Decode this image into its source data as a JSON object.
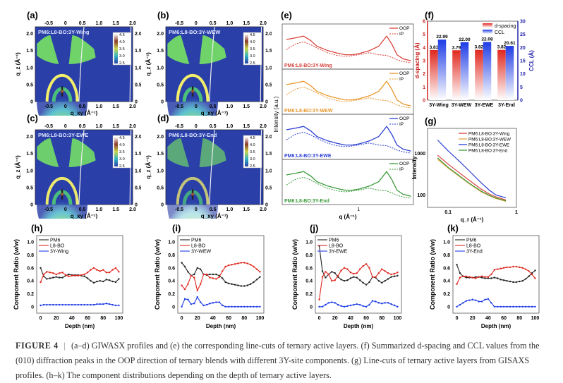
{
  "figure": {
    "caption_label": "FIGURE 4",
    "caption_separator": "|",
    "caption_text": "(a–d) GIWASX profiles and (e) the corresponding line-cuts of ternary active layers. (f) Summarized d-spacing and CCL values from the (010) diffraction peaks in the OOP direction of ternary blends with different 3Y-site components. (g) Line-cuts of ternary active layers from GISAXS profiles. (h–k) The component distributions depending on the depth of ternary active layers."
  },
  "giwaxs": {
    "xlabel": "q_xy (Å⁻¹)",
    "ylabel": "q_z (Å⁻¹)",
    "xticks": [
      "-0.5",
      "0",
      "0.5",
      "1.0",
      "1.5",
      "2.0"
    ],
    "yticks": [
      "0",
      "0.5",
      "1.0",
      "1.5",
      "2.0"
    ],
    "colorbar_ticks": [
      "4.5",
      "4.0",
      "3.5",
      "3.0",
      "2.5"
    ],
    "panels": [
      {
        "label": "(a)",
        "sample": "PM6:L8-BO:3Y-Wing",
        "intensity": 1.0
      },
      {
        "label": "(b)",
        "sample": "PM6:L8-BO:3Y-WEW",
        "intensity": 1.0
      },
      {
        "label": "(c)",
        "sample": "PM6:L8-BO:3Y-EWE",
        "intensity": 0.95
      },
      {
        "label": "(d)",
        "sample": "PM6:L8-BO:3Y-End",
        "intensity": 0.6
      }
    ]
  },
  "chart_data": [
    {
      "id": "e",
      "type": "line",
      "label": "(e)",
      "xlabel": "q (Å⁻¹)",
      "ylabel": "Intensity (a.u.)",
      "xscale": "log",
      "xtick": "1",
      "legend": [
        "OOP",
        "IP"
      ],
      "stacks": [
        {
          "sample": "PM6:L8-BO:3Y-Wing",
          "color": "#d9433c"
        },
        {
          "sample": "PM6:L8-BO:3Y-WEW",
          "color": "#e8962a"
        },
        {
          "sample": "PM6:L8-BO:3Y-EWE",
          "color": "#2b3fd1"
        },
        {
          "sample": "PM6:L8-BO:3Y-End",
          "color": "#3a9a3a"
        }
      ],
      "q": [
        0.3,
        0.35,
        0.4,
        0.45,
        0.5,
        0.6,
        0.7,
        0.8,
        0.9,
        1.0,
        1.2,
        1.4,
        1.6,
        1.75,
        1.9,
        2.1,
        2.4
      ],
      "oop_profile": [
        0.75,
        0.8,
        0.85,
        0.72,
        0.55,
        0.42,
        0.35,
        0.3,
        0.3,
        0.33,
        0.42,
        0.55,
        0.85,
        0.6,
        0.3,
        0.18,
        0.12
      ],
      "ip_profile": [
        0.45,
        0.62,
        0.68,
        0.6,
        0.5,
        0.35,
        0.28,
        0.25,
        0.27,
        0.3,
        0.36,
        0.3,
        0.28,
        0.22,
        0.15,
        0.1,
        0.06
      ]
    },
    {
      "id": "f",
      "type": "bar",
      "label": "(f)",
      "categories": [
        "3Y-Wing",
        "3Y-WEW",
        "3Y-EWE",
        "3Y-End"
      ],
      "series": [
        {
          "name": "d-spacing",
          "axis": "left",
          "color": "#e0281e",
          "values": [
            3.81,
            3.79,
            3.82,
            3.82
          ]
        },
        {
          "name": "CCL",
          "axis": "right",
          "color": "#1e3ce6",
          "values": [
            22.99,
            22.0,
            22.08,
            20.61
          ]
        }
      ],
      "data_labels": [
        [
          "3.81",
          "3.79",
          "3.82",
          "3.82"
        ],
        [
          "22.99",
          "22.00",
          "22.08",
          "20.61"
        ]
      ],
      "ylabel": "d-spacing (Å)",
      "y2label": "CCL (Å)",
      "ylim": [
        0,
        6
      ],
      "y2lim": [
        0,
        30
      ],
      "yticks": [
        "0",
        "1",
        "2",
        "3",
        "4",
        "5",
        "6"
      ],
      "y2ticks": [
        "0",
        "5",
        "10",
        "15",
        "20",
        "25",
        "30"
      ]
    },
    {
      "id": "g",
      "type": "line",
      "label": "(g)",
      "xlabel": "q_r (Å⁻¹)",
      "ylabel": "Intensity",
      "xscale": "log",
      "yscale": "log",
      "xlim": [
        0.05,
        1
      ],
      "ylim": [
        50,
        4000
      ],
      "xticks": [
        "0.1",
        "1"
      ],
      "yticks": [
        "100",
        "1000"
      ],
      "x": [
        0.07,
        0.1,
        0.15,
        0.2,
        0.3,
        0.4,
        0.5,
        0.7
      ],
      "series": [
        {
          "name": "PM6:L8-BO:3Y-Wing",
          "color": "#d9433c",
          "values": [
            900,
            550,
            330,
            230,
            140,
            105,
            90,
            75
          ]
        },
        {
          "name": "PM6:L8-BO:3Y-WEW",
          "color": "#e8a53a",
          "values": [
            720,
            440,
            270,
            190,
            120,
            95,
            82,
            70
          ]
        },
        {
          "name": "PM6:L8-BO:3Y-EWE",
          "color": "#2b3fd1",
          "values": [
            2100,
            1150,
            620,
            390,
            200,
            130,
            100,
            85
          ]
        },
        {
          "name": "PM6:L8-BO:3Y-End",
          "color": "#3a9a3a",
          "values": [
            780,
            460,
            280,
            195,
            125,
            98,
            84,
            72
          ]
        }
      ]
    },
    {
      "id": "h",
      "type": "line",
      "label": "(h)",
      "xlabel": "Depth (nm)",
      "ylabel": "Component Ratio (w/w)",
      "xlim": [
        -5,
        105
      ],
      "ylim": [
        -0.1,
        1.1
      ],
      "xticks": [
        "0",
        "20",
        "40",
        "60",
        "80",
        "100"
      ],
      "yticks": [
        "0",
        "0.2",
        "0.4",
        "0.6",
        "0.8",
        "1.0"
      ],
      "x": [
        0,
        4,
        8,
        12,
        16,
        20,
        24,
        28,
        32,
        36,
        40,
        44,
        48,
        52,
        56,
        60,
        64,
        68,
        72,
        76,
        80,
        84,
        88,
        92,
        96,
        100
      ],
      "series": [
        {
          "name": "PM6",
          "color": "#222222",
          "values": [
            0.6,
            0.47,
            0.43,
            0.44,
            0.45,
            0.46,
            0.45,
            0.45,
            0.48,
            0.5,
            0.49,
            0.49,
            0.49,
            0.48,
            0.47,
            0.44,
            0.4,
            0.37,
            0.39,
            0.4,
            0.39,
            0.42,
            0.41,
            0.39,
            0.38,
            0.43
          ]
        },
        {
          "name": "L8-BO",
          "color": "#e0281e",
          "values": [
            0.38,
            0.5,
            0.54,
            0.53,
            0.52,
            0.5,
            0.52,
            0.53,
            0.49,
            0.47,
            0.48,
            0.48,
            0.48,
            0.49,
            0.5,
            0.53,
            0.57,
            0.6,
            0.57,
            0.55,
            0.57,
            0.53,
            0.53,
            0.57,
            0.6,
            0.54
          ]
        },
        {
          "name": "3Y-Wing",
          "color": "#1e3ce6",
          "values": [
            0.02,
            0.03,
            0.03,
            0.03,
            0.03,
            0.03,
            0.03,
            0.03,
            0.03,
            0.03,
            0.03,
            0.03,
            0.03,
            0.03,
            0.03,
            0.03,
            0.03,
            0.03,
            0.04,
            0.04,
            0.04,
            0.05,
            0.04,
            0.03,
            0.02,
            0.02
          ]
        }
      ]
    },
    {
      "id": "i",
      "type": "line",
      "label": "(i)",
      "xlabel": "Depth (nm)",
      "ylabel": "Component Ratio (w/w)",
      "xlim": [
        -5,
        105
      ],
      "ylim": [
        -0.1,
        1.1
      ],
      "xticks": [
        "0",
        "20",
        "40",
        "60",
        "80",
        "100"
      ],
      "yticks": [
        "0",
        "0.2",
        "0.4",
        "0.6",
        "0.8",
        "1.0"
      ],
      "x": [
        0,
        4,
        8,
        12,
        16,
        20,
        24,
        28,
        32,
        36,
        40,
        44,
        48,
        52,
        56,
        60,
        64,
        68,
        72,
        76,
        80,
        84,
        88,
        92,
        96,
        100
      ],
      "series": [
        {
          "name": "PM6",
          "color": "#222222",
          "values": [
            0.68,
            0.62,
            0.54,
            0.48,
            0.5,
            0.6,
            0.58,
            0.5,
            0.49,
            0.5,
            0.5,
            0.5,
            0.48,
            0.44,
            0.38,
            0.36,
            0.35,
            0.34,
            0.33,
            0.32,
            0.32,
            0.33,
            0.35,
            0.38,
            0.42,
            0.46
          ]
        },
        {
          "name": "L8-BO",
          "color": "#e0281e",
          "values": [
            0.33,
            0.27,
            0.35,
            0.48,
            0.45,
            0.25,
            0.35,
            0.5,
            0.5,
            0.45,
            0.44,
            0.43,
            0.46,
            0.55,
            0.62,
            0.64,
            0.65,
            0.66,
            0.67,
            0.68,
            0.68,
            0.67,
            0.65,
            0.62,
            0.58,
            0.54
          ]
        },
        {
          "name": "3Y-WEW",
          "color": "#1e3ce6",
          "values": [
            0.0,
            0.12,
            0.11,
            0.04,
            0.05,
            0.15,
            0.07,
            0.02,
            0.03,
            0.05,
            0.06,
            0.07,
            0.07,
            0.02,
            0.0,
            0.0,
            0.0,
            0.0,
            0.0,
            0.0,
            0.0,
            0.0,
            0.0,
            0.0,
            0.0,
            0.0
          ]
        }
      ]
    },
    {
      "id": "j",
      "type": "line",
      "label": "(j)",
      "xlabel": "Depth (nm)",
      "ylabel": "Component Ratio (w/w)",
      "xlim": [
        -5,
        105
      ],
      "ylim": [
        -0.1,
        1.1
      ],
      "xticks": [
        "0",
        "20",
        "40",
        "60",
        "80",
        "100"
      ],
      "yticks": [
        "0",
        "0.2",
        "0.4",
        "0.6",
        "0.8",
        "1.0"
      ],
      "x": [
        0,
        4,
        8,
        12,
        16,
        20,
        24,
        28,
        32,
        36,
        40,
        44,
        48,
        52,
        56,
        60,
        64,
        68,
        72,
        76,
        80,
        84,
        88,
        92,
        96,
        100
      ],
      "series": [
        {
          "name": "PM6",
          "color": "#222222",
          "values": [
            0.94,
            0.55,
            0.45,
            0.5,
            0.54,
            0.52,
            0.46,
            0.42,
            0.4,
            0.41,
            0.44,
            0.46,
            0.45,
            0.41,
            0.37,
            0.34,
            0.38,
            0.46,
            0.45,
            0.4,
            0.37,
            0.4,
            0.43,
            0.46,
            0.47,
            0.48
          ]
        },
        {
          "name": "L8-BO",
          "color": "#e0281e",
          "values": [
            0.11,
            0.46,
            0.54,
            0.5,
            0.4,
            0.41,
            0.48,
            0.56,
            0.6,
            0.58,
            0.53,
            0.51,
            0.52,
            0.58,
            0.63,
            0.66,
            0.6,
            0.46,
            0.46,
            0.52,
            0.58,
            0.55,
            0.52,
            0.5,
            0.51,
            0.53
          ]
        },
        {
          "name": "3Y-EWE",
          "color": "#1e3ce6",
          "values": [
            0.0,
            0.0,
            0.03,
            0.06,
            0.07,
            0.06,
            0.03,
            0.01,
            0.0,
            0.01,
            0.02,
            0.03,
            0.04,
            0.03,
            0.01,
            0.0,
            0.03,
            0.09,
            0.08,
            0.06,
            0.05,
            0.06,
            0.06,
            0.04,
            0.02,
            0.0
          ]
        }
      ]
    },
    {
      "id": "k",
      "type": "line",
      "label": "(k)",
      "xlabel": "Depth (nm)",
      "ylabel": "Component Ratio (w/w)",
      "xlim": [
        -5,
        105
      ],
      "ylim": [
        -0.1,
        1.1
      ],
      "xticks": [
        "0",
        "20",
        "40",
        "60",
        "80",
        "100"
      ],
      "yticks": [
        "0",
        "0.2",
        "0.4",
        "0.6",
        "0.8",
        "1.0"
      ],
      "x": [
        0,
        4,
        8,
        12,
        16,
        20,
        24,
        28,
        32,
        36,
        40,
        44,
        48,
        52,
        56,
        60,
        64,
        68,
        72,
        76,
        80,
        84,
        88,
        92,
        96,
        100
      ],
      "series": [
        {
          "name": "PM6",
          "color": "#222222",
          "values": [
            0.65,
            0.52,
            0.47,
            0.45,
            0.45,
            0.45,
            0.46,
            0.46,
            0.45,
            0.44,
            0.44,
            0.44,
            0.45,
            0.44,
            0.42,
            0.41,
            0.4,
            0.39,
            0.38,
            0.38,
            0.39,
            0.4,
            0.43,
            0.47,
            0.52,
            0.56
          ]
        },
        {
          "name": "L8-BO",
          "color": "#e0281e",
          "values": [
            0.35,
            0.45,
            0.47,
            0.47,
            0.46,
            0.45,
            0.44,
            0.46,
            0.47,
            0.46,
            0.46,
            0.5,
            0.57,
            0.58,
            0.59,
            0.6,
            0.61,
            0.61,
            0.62,
            0.62,
            0.61,
            0.6,
            0.58,
            0.55,
            0.5,
            0.44
          ]
        },
        {
          "name": "3Y-End",
          "color": "#1e3ce6",
          "values": [
            0.0,
            0.03,
            0.06,
            0.09,
            0.1,
            0.11,
            0.1,
            0.08,
            0.08,
            0.11,
            0.12,
            0.06,
            0.0,
            0.0,
            0.0,
            0.0,
            0.0,
            0.0,
            0.0,
            0.0,
            0.0,
            0.0,
            0.0,
            0.0,
            0.0,
            0.0
          ]
        }
      ]
    }
  ]
}
